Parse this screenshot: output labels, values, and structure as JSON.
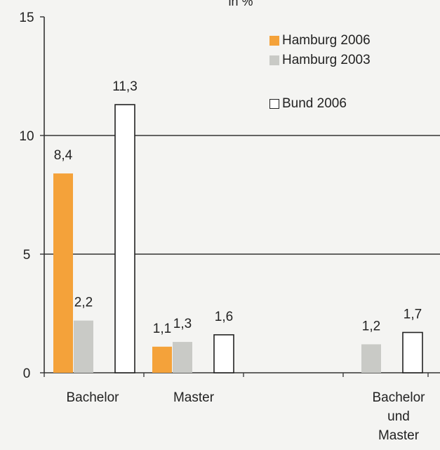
{
  "chart_data": {
    "type": "bar",
    "title": "in %",
    "categories": [
      "Bachelor",
      "Master",
      "Bachelor\nund\nMaster"
    ],
    "series": [
      {
        "name": "Hamburg 2006",
        "values": [
          8.4,
          1.1,
          null
        ],
        "labels": [
          "8,4",
          "1,1",
          ""
        ],
        "color": "#f4a23a"
      },
      {
        "name": "Hamburg 2003",
        "values": [
          2.2,
          1.3,
          1.2
        ],
        "labels": [
          "2,2",
          "1,3",
          "1,2"
        ],
        "color": "#c9cac6"
      },
      {
        "name": "Bund 2006",
        "values": [
          11.3,
          1.6,
          1.7
        ],
        "labels": [
          "11,3",
          "1,6",
          "1,7"
        ],
        "color": "#ffffff"
      }
    ],
    "ylim": [
      0,
      15
    ],
    "yticks": [
      "0",
      "5",
      "10",
      "15"
    ],
    "grid": true,
    "legend_position": "top-right"
  }
}
